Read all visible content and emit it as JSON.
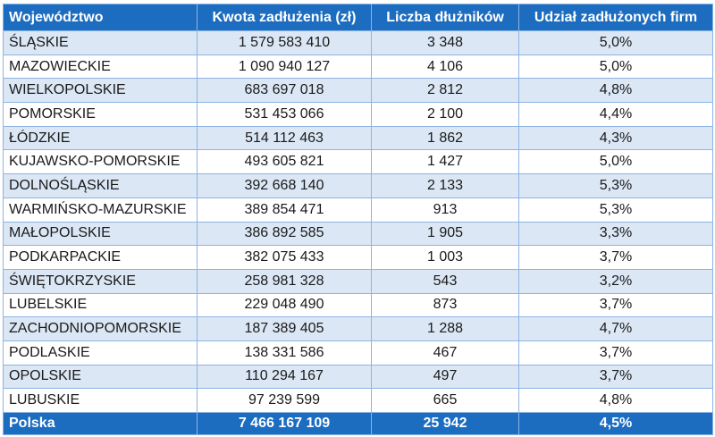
{
  "headers": [
    "Województwo",
    "Kwota zadłużenia (zł)",
    "Liczba dłużników",
    "Udział zadłużonych firm"
  ],
  "rows": [
    [
      "ŚLĄSKIE",
      "1 579 583 410",
      "3 348",
      "5,0%"
    ],
    [
      "MAZOWIECKIE",
      "1 090 940 127",
      "4 106",
      "5,0%"
    ],
    [
      "WIELKOPOLSKIE",
      "683 697 018",
      "2 812",
      "4,8%"
    ],
    [
      "POMORSKIE",
      "531 453 066",
      "2 100",
      "4,4%"
    ],
    [
      "ŁÓDZKIE",
      "514 112 463",
      "1 862",
      "4,3%"
    ],
    [
      "KUJAWSKO-POMORSKIE",
      "493 605 821",
      "1 427",
      "5,0%"
    ],
    [
      "DOLNOŚLĄSKIE",
      "392 668 140",
      "2 133",
      "5,3%"
    ],
    [
      "WARMIŃSKO-MAZURSKIE",
      "389 854 471",
      "913",
      "5,3%"
    ],
    [
      "MAŁOPOLSKIE",
      "386 892 585",
      "1 905",
      "3,3%"
    ],
    [
      "PODKARPACKIE",
      "382 075 433",
      "1 003",
      "3,7%"
    ],
    [
      "ŚWIĘTOKRZYSKIE",
      "258 981 328",
      "543",
      "3,2%"
    ],
    [
      "LUBELSKIE",
      "229 048 490",
      "873",
      "3,7%"
    ],
    [
      "ZACHODNIOPOMORSKIE",
      "187 389 405",
      "1 288",
      "4,7%"
    ],
    [
      "PODLASKIE",
      "138 331 586",
      "467",
      "3,7%"
    ],
    [
      "OPOLSKIE",
      "110 294 167",
      "497",
      "3,7%"
    ],
    [
      "LUBUSKIE",
      "97 239 599",
      "665",
      "4,8%"
    ]
  ],
  "total": [
    "Polska",
    "7 466 167 109",
    "25 942",
    "4,5%"
  ],
  "colors": {
    "header": "#1c6cc0",
    "stripe": "#dbe7f5",
    "border": "#8db4e2"
  }
}
